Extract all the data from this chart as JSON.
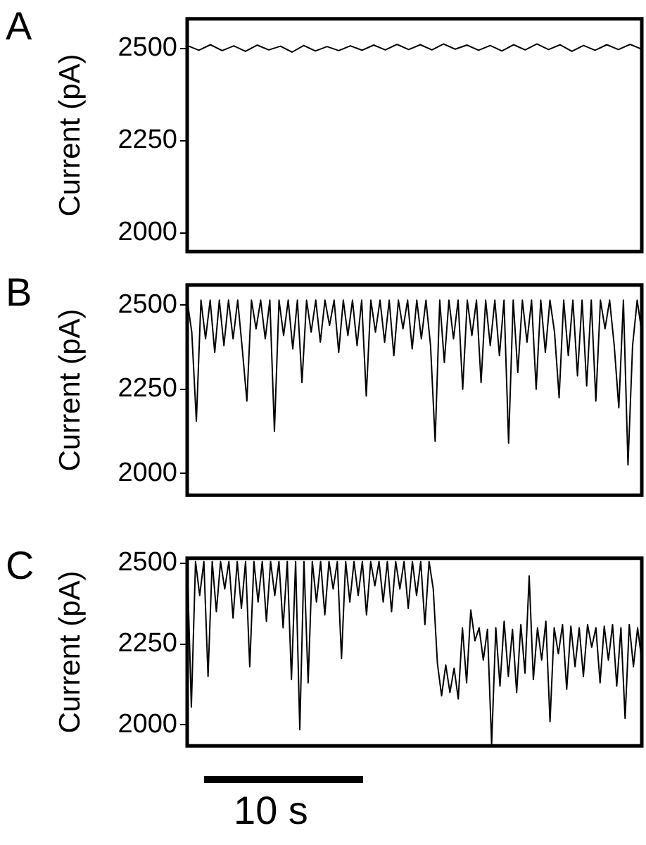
{
  "chart_data": [
    {
      "type": "line",
      "title": "A",
      "ylabel": "Current (pA)",
      "tick_labels": "y",
      "grid": false,
      "marker": "none",
      "ylim": [
        1950,
        2580
      ],
      "yticks": [
        2000,
        2250,
        2500
      ],
      "categories": [
        null,
        null,
        null,
        null,
        null,
        null,
        null,
        null,
        null,
        null,
        null,
        null,
        null,
        null,
        null,
        null,
        null,
        null,
        null,
        null,
        null,
        null,
        null,
        null,
        null,
        null,
        null,
        null,
        null,
        null,
        null,
        null,
        null,
        null,
        null,
        null,
        null,
        null,
        null,
        null
      ],
      "series": [
        {
          "color": "#000000",
          "values": [
            2508,
            2495,
            2510,
            2494,
            2507,
            2492,
            2509,
            2496,
            2506,
            2490,
            2508,
            2493,
            2505,
            2494,
            2507,
            2495,
            2509,
            2496,
            2511,
            2497,
            2510,
            2496,
            2512,
            2498,
            2509,
            2495,
            2508,
            2493,
            2510,
            2496,
            2512,
            2497,
            2510,
            2492,
            2508,
            2495,
            2510,
            2497,
            2511,
            2498
          ]
        }
      ]
    },
    {
      "type": "line",
      "title": "B",
      "ylabel": "Current (pA)",
      "tick_labels": "y",
      "grid": false,
      "marker": "none",
      "ylim": [
        1935,
        2560
      ],
      "yticks": [
        2000,
        2250,
        2500
      ],
      "categories": [
        null,
        null,
        null,
        null,
        null,
        null,
        null,
        null,
        null,
        null,
        null,
        null,
        null,
        null,
        null,
        null,
        null,
        null,
        null,
        null,
        null,
        null,
        null,
        null,
        null,
        null,
        null,
        null,
        null,
        null,
        null,
        null,
        null,
        null,
        null,
        null,
        null,
        null,
        null,
        null,
        null,
        null,
        null,
        null,
        null,
        null,
        null,
        null,
        null,
        null,
        null,
        null,
        null,
        null,
        null,
        null,
        null,
        null,
        null,
        null,
        null,
        null,
        null,
        null,
        null,
        null,
        null,
        null,
        null,
        null,
        null,
        null,
        null,
        null,
        null,
        null,
        null,
        null,
        null,
        null,
        null,
        null,
        null,
        null,
        null,
        null,
        null,
        null,
        null,
        null,
        null,
        null,
        null,
        null,
        null,
        null,
        null,
        null,
        null,
        null
      ],
      "series": [
        {
          "color": "#000000",
          "values": [
            2515,
            2420,
            2155,
            2515,
            2400,
            2515,
            2360,
            2515,
            2380,
            2515,
            2400,
            2515,
            2370,
            2215,
            2515,
            2430,
            2515,
            2400,
            2515,
            2125,
            2515,
            2410,
            2515,
            2370,
            2515,
            2270,
            2515,
            2420,
            2515,
            2390,
            2515,
            2440,
            2515,
            2360,
            2515,
            2410,
            2515,
            2380,
            2515,
            2230,
            2515,
            2420,
            2515,
            2390,
            2515,
            2350,
            2515,
            2430,
            2515,
            2370,
            2515,
            2400,
            2515,
            2380,
            2095,
            2515,
            2330,
            2515,
            2400,
            2515,
            2250,
            2515,
            2410,
            2515,
            2270,
            2515,
            2380,
            2515,
            2350,
            2515,
            2090,
            2515,
            2300,
            2515,
            2390,
            2515,
            2250,
            2515,
            2360,
            2515,
            2420,
            2225,
            2515,
            2350,
            2515,
            2290,
            2515,
            2260,
            2515,
            2215,
            2515,
            2430,
            2515,
            2380,
            2195,
            2515,
            2025,
            2380,
            2515,
            2420
          ]
        }
      ]
    },
    {
      "type": "line",
      "title": "C",
      "ylabel": "Current (pA)",
      "tick_labels": "y",
      "grid": false,
      "marker": "none",
      "ylim": [
        1935,
        2515
      ],
      "yticks": [
        2000,
        2250,
        2500
      ],
      "annotations": [
        "10 s"
      ],
      "categories": [
        null,
        null,
        null,
        null,
        null,
        null,
        null,
        null,
        null,
        null,
        null,
        null,
        null,
        null,
        null,
        null,
        null,
        null,
        null,
        null,
        null,
        null,
        null,
        null,
        null,
        null,
        null,
        null,
        null,
        null,
        null,
        null,
        null,
        null,
        null,
        null,
        null,
        null,
        null,
        null,
        null,
        null,
        null,
        null,
        null,
        null,
        null,
        null,
        null,
        null,
        null,
        null,
        null,
        null,
        null,
        null,
        null,
        null,
        null,
        null,
        null,
        null,
        null,
        null,
        null,
        null,
        null,
        null,
        null,
        null,
        null,
        null,
        null,
        null,
        null,
        null,
        null,
        null,
        null,
        null,
        null,
        null,
        null,
        null,
        null,
        null,
        null,
        null,
        null,
        null,
        null,
        null,
        null,
        null,
        null,
        null,
        null,
        null,
        null,
        null,
        null,
        null,
        null,
        null,
        null,
        null,
        null,
        null,
        null,
        null
      ],
      "series": [
        {
          "color": "#000000",
          "values": [
            2505,
            2055,
            2505,
            2400,
            2505,
            2150,
            2505,
            2350,
            2505,
            2420,
            2505,
            2330,
            2505,
            2360,
            2505,
            2180,
            2505,
            2380,
            2505,
            2320,
            2505,
            2400,
            2505,
            2300,
            2505,
            2140,
            2505,
            1985,
            2505,
            2130,
            2505,
            2380,
            2505,
            2340,
            2505,
            2420,
            2505,
            2205,
            2505,
            2380,
            2505,
            2400,
            2505,
            2340,
            2505,
            2430,
            2505,
            2380,
            2505,
            2350,
            2505,
            2420,
            2505,
            2360,
            2505,
            2400,
            2505,
            2310,
            2505,
            2420,
            2190,
            2090,
            2185,
            2100,
            2175,
            2080,
            2300,
            2130,
            2355,
            2260,
            2300,
            2200,
            2295,
            1940,
            2300,
            2120,
            2320,
            2150,
            2295,
            2100,
            2310,
            2160,
            2460,
            2140,
            2300,
            2200,
            2320,
            2010,
            2300,
            2220,
            2310,
            2110,
            2305,
            2180,
            2300,
            2150,
            2310,
            2240,
            2300,
            2130,
            2305,
            2200,
            2310,
            2120,
            2300,
            2020,
            2310,
            2180,
            2300,
            2200
          ]
        }
      ]
    }
  ]
}
